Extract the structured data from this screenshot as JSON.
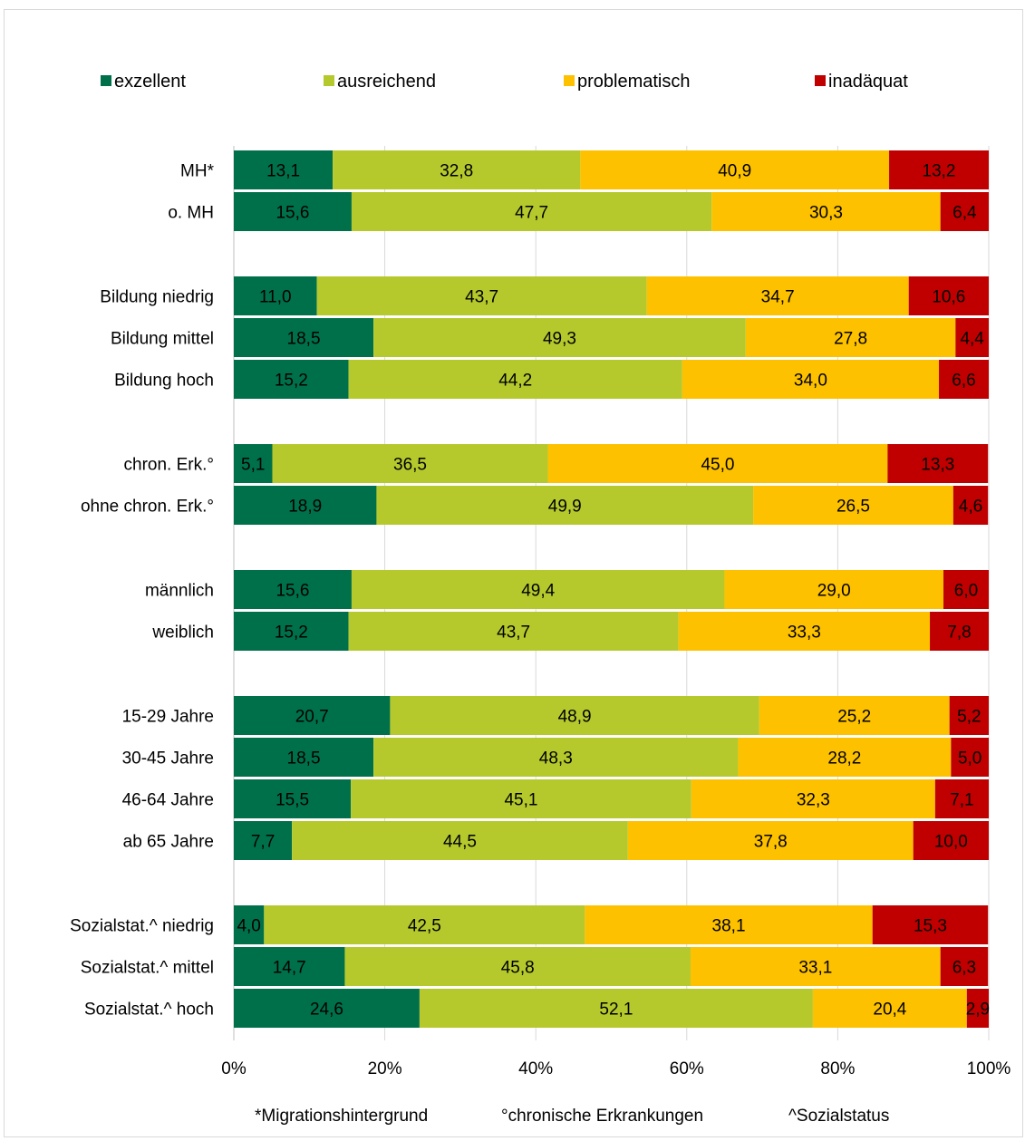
{
  "chart_data": {
    "type": "bar",
    "orientation": "horizontal",
    "stacked": "percent",
    "categories": [
      "MH*",
      "o. MH",
      "Bildung niedrig",
      "Bildung mittel",
      "Bildung hoch",
      "chron. Erk.°",
      "ohne chron. Erk.°",
      "männlich",
      "weiblich",
      "15-29 Jahre",
      "30-45 Jahre",
      "46-64 Jahre",
      "ab 65 Jahre",
      "Sozialstat.^ niedrig",
      "Sozialstat.^ mittel",
      "Sozialstat.^ hoch"
    ],
    "category_groups": [
      2,
      3,
      2,
      2,
      4,
      3
    ],
    "series": [
      {
        "name": "exzellent",
        "color": "#00704a",
        "values": [
          13.1,
          15.6,
          11.0,
          18.5,
          15.2,
          5.1,
          18.9,
          15.6,
          15.2,
          20.7,
          18.5,
          15.5,
          7.7,
          4.0,
          14.7,
          24.6
        ],
        "labels": [
          "13,1",
          "15,6",
          "11,0",
          "18,5",
          "15,2",
          "5,1",
          "18,9",
          "15,6",
          "15,2",
          "20,7",
          "18,5",
          "15,5",
          "7,7",
          "4,0",
          "14,7",
          "24,6"
        ]
      },
      {
        "name": "ausreichend",
        "color": "#b5c92d",
        "values": [
          32.8,
          47.7,
          43.7,
          49.3,
          44.2,
          36.5,
          49.9,
          49.4,
          43.7,
          48.9,
          48.3,
          45.1,
          44.5,
          42.5,
          45.8,
          52.1
        ],
        "labels": [
          "32,8",
          "47,7",
          "43,7",
          "49,3",
          "44,2",
          "36,5",
          "49,9",
          "49,4",
          "43,7",
          "48,9",
          "48,3",
          "45,1",
          "44,5",
          "42,5",
          "45,8",
          "52,1"
        ]
      },
      {
        "name": "problematisch",
        "color": "#fdc100",
        "values": [
          40.9,
          30.3,
          34.7,
          27.8,
          34.0,
          45.0,
          26.5,
          29.0,
          33.3,
          25.2,
          28.2,
          32.3,
          37.8,
          38.1,
          33.1,
          20.4
        ],
        "labels": [
          "40,9",
          "30,3",
          "34,7",
          "27,8",
          "34,0",
          "45,0",
          "26,5",
          "29,0",
          "33,3",
          "25,2",
          "28,2",
          "32,3",
          "37,8",
          "38,1",
          "33,1",
          "20,4"
        ]
      },
      {
        "name": "inadäquat",
        "color": "#c00000",
        "values": [
          13.2,
          6.4,
          10.6,
          4.4,
          6.6,
          13.3,
          4.6,
          6.0,
          7.8,
          5.2,
          5.0,
          7.1,
          10.0,
          15.3,
          6.3,
          2.9
        ],
        "labels": [
          "13,2",
          "6,4",
          "10,6",
          "4,4",
          "6,6",
          "13,3",
          "4,6",
          "6,0",
          "7,8",
          "5,2",
          "5,0",
          "7,1",
          "10,0",
          "15,3",
          "6,3",
          "2,9"
        ]
      }
    ],
    "x_ticks": [
      "0%",
      "20%",
      "40%",
      "60%",
      "80%",
      "100%"
    ],
    "xlim": [
      0,
      100
    ],
    "grid": true,
    "legend_position": "top",
    "footnotes": [
      "*Migrationshintergrund",
      "°chronische Erkrankungen",
      "^Sozialstatus"
    ]
  }
}
